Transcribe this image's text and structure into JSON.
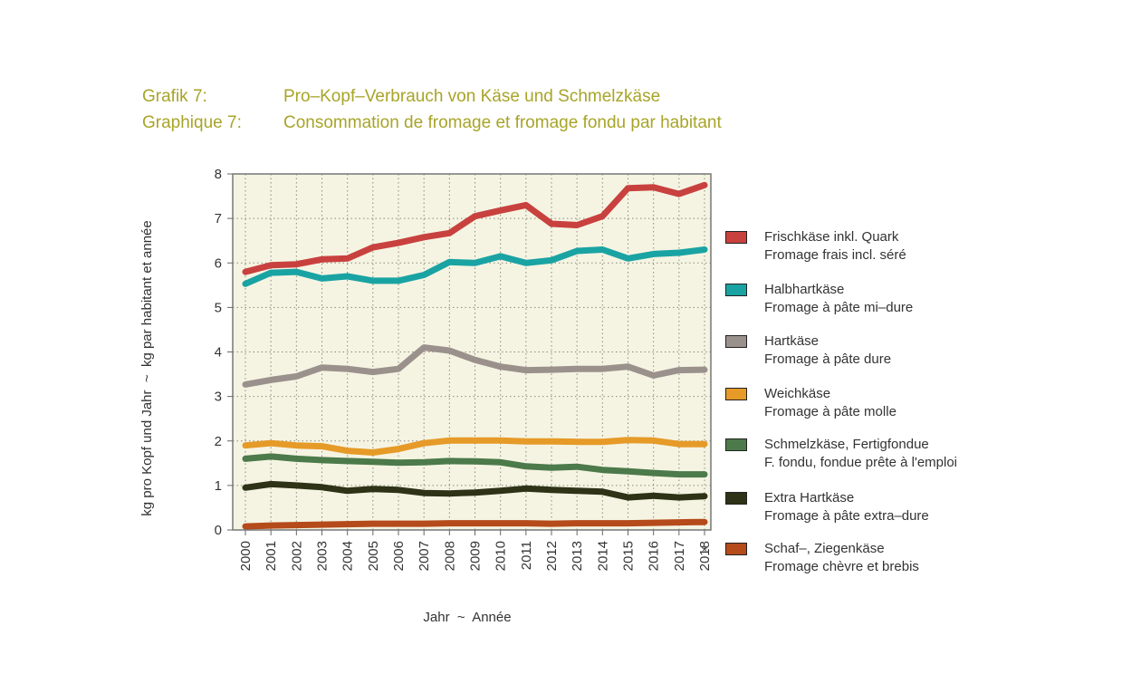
{
  "titles": [
    {
      "label": "Grafik 7:",
      "text": "Pro–Kopf–Verbrauch von Käse und Schmelzkäse"
    },
    {
      "label": "Graphique 7:",
      "text": "Consommation de fromage et fromage fondu par habitant"
    }
  ],
  "chart_data": {
    "type": "line",
    "xlabel": "Jahr  ~  Année",
    "ylabel": "kg pro Kopf und Jahr  ~  kg par habitant et année",
    "ylim": [
      0,
      8
    ],
    "yticks": [
      "0",
      "1",
      "2",
      "3",
      "4",
      "5",
      "6",
      "7",
      "8"
    ],
    "grid": true,
    "legend_position": "right",
    "footnote_mark": "*",
    "categories": [
      "2000",
      "2001",
      "2002",
      "2003",
      "2004",
      "2005",
      "2006",
      "2007",
      "2008",
      "2009",
      "2010",
      "2011",
      "2012",
      "2013",
      "2014",
      "2015",
      "2016",
      "2017",
      "2018"
    ],
    "series": [
      {
        "name": "Frischkäse inkl. Quark",
        "name_fr": "Fromage frais incl. séré",
        "color": "#c8413f",
        "values": [
          5.8,
          5.95,
          5.97,
          6.08,
          6.1,
          6.35,
          6.45,
          6.58,
          6.67,
          7.05,
          7.18,
          7.3,
          6.88,
          6.85,
          7.05,
          7.68,
          7.7,
          7.55,
          7.75
        ]
      },
      {
        "name": "Halbhartkäse",
        "name_fr": "Fromage à pâte mi–dure",
        "color": "#1aa3a3",
        "values": [
          5.53,
          5.78,
          5.8,
          5.65,
          5.7,
          5.6,
          5.6,
          5.73,
          6.02,
          6.0,
          6.15,
          6.0,
          6.06,
          6.27,
          6.3,
          6.1,
          6.2,
          6.23,
          6.3
        ]
      },
      {
        "name": "Hartkäse",
        "name_fr": "Fromage à pâte dure",
        "color": "#9b918c",
        "values": [
          3.27,
          3.37,
          3.45,
          3.65,
          3.62,
          3.55,
          3.62,
          4.1,
          4.03,
          3.82,
          3.67,
          3.59,
          3.6,
          3.62,
          3.62,
          3.67,
          3.47,
          3.59,
          3.6
        ]
      },
      {
        "name": "Weichkäse",
        "name_fr": "Fromage à pâte molle",
        "color": "#e69a28",
        "values": [
          1.9,
          1.95,
          1.9,
          1.88,
          1.78,
          1.74,
          1.82,
          1.95,
          2.01,
          2.01,
          2.01,
          1.99,
          1.99,
          1.98,
          1.98,
          2.02,
          2.01,
          1.93,
          1.93
        ]
      },
      {
        "name": "Schmelzkäse, Fertigfondue",
        "name_fr": "F. fondu, fondue prête à l'emploi",
        "color": "#4c7a4a",
        "values": [
          1.6,
          1.65,
          1.6,
          1.57,
          1.55,
          1.53,
          1.51,
          1.52,
          1.55,
          1.54,
          1.52,
          1.43,
          1.4,
          1.42,
          1.35,
          1.32,
          1.28,
          1.25,
          1.25
        ]
      },
      {
        "name": "Extra Hartkäse",
        "name_fr": "Fromage à pâte extra–dure",
        "color": "#2e3216",
        "values": [
          0.95,
          1.03,
          1.0,
          0.96,
          0.88,
          0.92,
          0.9,
          0.83,
          0.82,
          0.84,
          0.88,
          0.93,
          0.9,
          0.88,
          0.86,
          0.73,
          0.77,
          0.73,
          0.76
        ]
      },
      {
        "name": "Schaf–, Ziegenkäse",
        "name_fr": "Fromage chèvre et brebis",
        "color": "#b54a1a",
        "values": [
          0.08,
          0.1,
          0.11,
          0.12,
          0.13,
          0.14,
          0.14,
          0.14,
          0.15,
          0.15,
          0.15,
          0.15,
          0.14,
          0.15,
          0.15,
          0.15,
          0.16,
          0.17,
          0.18
        ]
      }
    ]
  }
}
